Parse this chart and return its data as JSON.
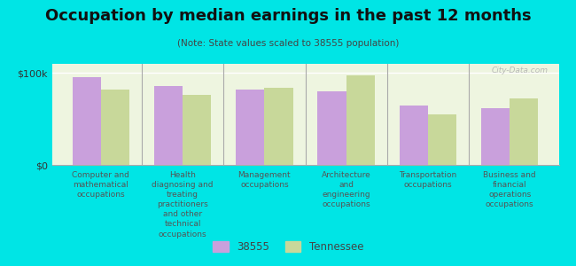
{
  "title": "Occupation by median earnings in the past 12 months",
  "subtitle": "(Note: State values scaled to 38555 population)",
  "categories": [
    "Computer and\nmathematical\noccupations",
    "Health\ndiagnosing and\ntreating\npractitioners\nand other\ntechnical\noccupations",
    "Management\noccupations",
    "Architecture\nand\nengineering\noccupations",
    "Transportation\noccupations",
    "Business and\nfinancial\noperations\noccupations"
  ],
  "values_38555": [
    96000,
    86000,
    82000,
    80000,
    65000,
    62000
  ],
  "values_tennessee": [
    82000,
    76000,
    84000,
    97000,
    55000,
    72000
  ],
  "color_38555": "#c9a0dc",
  "color_tennessee": "#c8d89a",
  "background_color": "#00e5e5",
  "plot_bg_color": "#eef5e0",
  "ytick_label_100k": "$100k",
  "ytick_label_0": "$0",
  "ylim": [
    0,
    110000
  ],
  "legend_38555": "38555",
  "legend_tennessee": "Tennessee",
  "watermark": "City-Data.com",
  "title_fontsize": 13,
  "subtitle_fontsize": 7.5,
  "tick_label_fontsize": 6.5,
  "legend_fontsize": 8.5,
  "bar_width": 0.35
}
